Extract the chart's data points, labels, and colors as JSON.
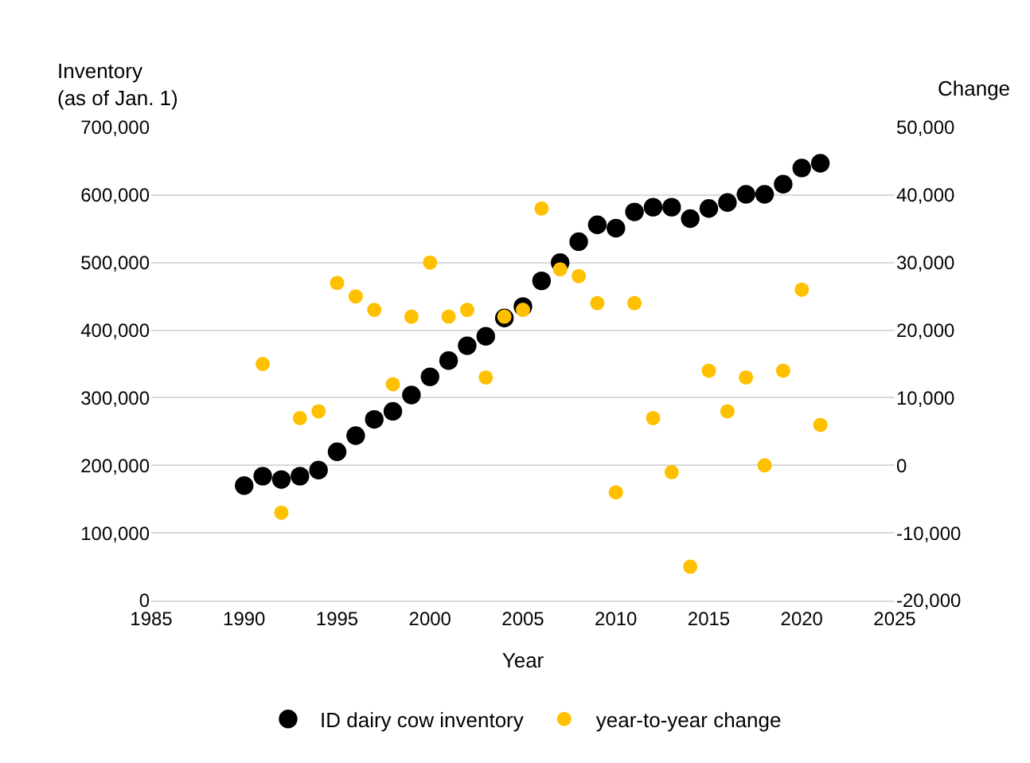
{
  "chart_data": {
    "type": "scatter",
    "xlabel": "Year",
    "ylabel": "Inventory\n(as of Jan. 1)",
    "y2label": "Change",
    "x": [
      1990,
      1991,
      1992,
      1993,
      1994,
      1995,
      1996,
      1997,
      1998,
      1999,
      2000,
      2001,
      2002,
      2003,
      2004,
      2005,
      2006,
      2007,
      2008,
      2009,
      2010,
      2011,
      2012,
      2013,
      2014,
      2015,
      2016,
      2017,
      2018,
      2019,
      2020,
      2021
    ],
    "series": [
      {
        "name": "ID dairy cow inventory",
        "color": "#000000",
        "values": [
          170000,
          184000,
          179000,
          184000,
          193000,
          220000,
          244000,
          268000,
          280000,
          304000,
          331000,
          355000,
          377000,
          391000,
          418000,
          435000,
          473000,
          500000,
          531000,
          556000,
          551000,
          575000,
          582000,
          582000,
          565000,
          580000,
          589000,
          601000,
          601000,
          616000,
          640000,
          647000
        ]
      },
      {
        "name": "year-to-year change",
        "color": "#ffc000",
        "axis": "y2",
        "values": [
          null,
          15000,
          -7000,
          7000,
          8000,
          27000,
          25000,
          23000,
          12000,
          22000,
          30000,
          22000,
          23000,
          13000,
          22000,
          23000,
          38000,
          29000,
          28000,
          24000,
          -4000,
          24000,
          7000,
          -1000,
          -15000,
          14000,
          8000,
          13000,
          0,
          14000,
          26000,
          6000
        ]
      }
    ],
    "xlim": [
      1985,
      2025
    ],
    "xticks": [
      1985,
      1990,
      1995,
      2000,
      2005,
      2010,
      2015,
      2020,
      2025
    ],
    "ylim": [
      0,
      700000
    ],
    "yticks": [
      {
        "value": 0,
        "label": "0"
      },
      {
        "value": 100000,
        "label": "100,000"
      },
      {
        "value": 200000,
        "label": "200,000"
      },
      {
        "value": 300000,
        "label": "300,000"
      },
      {
        "value": 400000,
        "label": "400,000"
      },
      {
        "value": 500000,
        "label": "500,000"
      },
      {
        "value": 600000,
        "label": "600,000"
      },
      {
        "value": 700000,
        "label": "700,000"
      }
    ],
    "y2lim": [
      -20000,
      50000
    ],
    "y2ticks": [
      {
        "value": -20000,
        "label": "-20,000"
      },
      {
        "value": -10000,
        "label": "-10,000"
      },
      {
        "value": 0,
        "label": "0"
      },
      {
        "value": 10000,
        "label": "10,000"
      },
      {
        "value": 20000,
        "label": "20,000"
      },
      {
        "value": 30000,
        "label": "30,000"
      },
      {
        "value": 40000,
        "label": "40,000"
      },
      {
        "value": 50000,
        "label": "50,000"
      }
    ],
    "grid": "y",
    "legend": "bottom",
    "marker": "circle"
  }
}
